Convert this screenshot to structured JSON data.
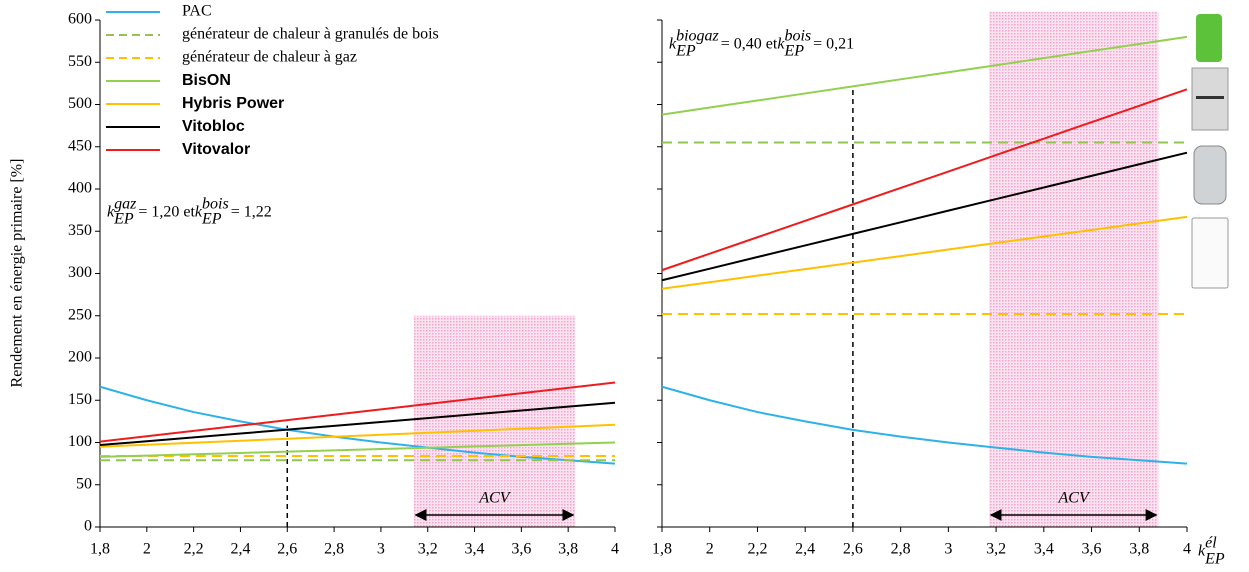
{
  "chart_data": [
    {
      "type": "line",
      "y_label": "Rendement en énergie primaire [%]",
      "x": [
        1.8,
        2.0,
        2.2,
        2.4,
        2.6,
        2.8,
        3.0,
        3.2,
        3.4,
        3.6,
        3.8,
        4.0
      ],
      "xlim": [
        1.8,
        4
      ],
      "xticks": [
        {
          "value": 1.8,
          "label": "1,8"
        },
        2,
        {
          "value": 2.2,
          "label": "2,2"
        },
        {
          "value": 2.4,
          "label": "2,4"
        },
        {
          "value": 2.6,
          "label": "2,6"
        },
        {
          "value": 2.8,
          "label": "2,8"
        },
        3,
        {
          "value": 3.2,
          "label": "3,2"
        },
        {
          "value": 3.4,
          "label": "3,4"
        },
        {
          "value": 3.6,
          "label": "3,6"
        },
        {
          "value": 3.8,
          "label": "3,8"
        },
        4
      ],
      "ylim": [
        0,
        600
      ],
      "yticks": [
        0,
        50,
        100,
        150,
        200,
        250,
        300,
        350,
        400,
        450,
        500,
        550,
        600
      ],
      "legend": "top-left",
      "annotation": [
        {
          "text": "k",
          "sub": "EP",
          "sup": "gaz"
        },
        {
          "text": " = 1,20  et  "
        },
        {
          "text": "k",
          "sub": "EP",
          "sup": "bois"
        },
        {
          "text": " = 1,22"
        }
      ],
      "reference_line": {
        "x": 2.6,
        "top": 120
      },
      "shaded_region": {
        "x": [
          3.14,
          3.83
        ],
        "y": [
          0,
          250
        ],
        "label": "ACV"
      },
      "series": [
        {
          "name": "PAC",
          "color": "#2db2e8",
          "dashed": false,
          "bold": false,
          "values": [
            166,
            150,
            136,
            125,
            115,
            107,
            100,
            94,
            88,
            83,
            79,
            75
          ]
        },
        {
          "name": "générateur de chaleur à granulés de bois",
          "color": "#92c353",
          "dashed": true,
          "bold": false,
          "values": [
            79,
            79,
            79,
            79,
            79,
            79,
            79,
            79,
            79,
            79,
            79,
            79
          ]
        },
        {
          "name": "générateur de chaleur à gaz",
          "color": "#ffc000",
          "dashed": true,
          "bold": false,
          "values": [
            84,
            84,
            84,
            84,
            84,
            84,
            84,
            84,
            84,
            84,
            84,
            84
          ]
        },
        {
          "name": "BisON",
          "color": "#92d050",
          "dashed": false,
          "bold": true,
          "values": [
            83,
            84.5,
            86.1,
            87.6,
            89.2,
            90.7,
            92.3,
            93.8,
            95.4,
            96.9,
            98.5,
            100
          ]
        },
        {
          "name": "Hybris Power",
          "color": "#ffc000",
          "dashed": false,
          "bold": true,
          "values": [
            95,
            97.4,
            99.7,
            102.1,
            104.5,
            106.8,
            109.2,
            111.5,
            113.9,
            116.3,
            118.6,
            121
          ]
        },
        {
          "name": "Vitobloc",
          "color": "#000000",
          "dashed": false,
          "bold": true,
          "values": [
            97,
            101.5,
            106.1,
            110.6,
            115.2,
            119.7,
            124.3,
            128.8,
            133.4,
            137.9,
            142.5,
            147
          ]
        },
        {
          "name": "Vitovalor",
          "color": "#ee1c1c",
          "dashed": false,
          "bold": true,
          "values": [
            101,
            107.4,
            113.7,
            120.1,
            126.5,
            132.8,
            139.2,
            145.5,
            151.9,
            158.3,
            164.6,
            171
          ]
        }
      ]
    },
    {
      "type": "line",
      "x_label": {
        "text": "k",
        "sub": "EP",
        "sup": "él"
      },
      "x": [
        1.8,
        2.0,
        2.2,
        2.4,
        2.6,
        2.8,
        3.0,
        3.2,
        3.4,
        3.6,
        3.8,
        4.0
      ],
      "xlim": [
        1.8,
        4
      ],
      "xticks": [
        {
          "value": 1.8,
          "label": "1,8"
        },
        2,
        {
          "value": 2.2,
          "label": "2,2"
        },
        {
          "value": 2.4,
          "label": "2,4"
        },
        {
          "value": 2.6,
          "label": "2,6"
        },
        {
          "value": 2.8,
          "label": "2,8"
        },
        3,
        {
          "value": 3.2,
          "label": "3,2"
        },
        {
          "value": 3.4,
          "label": "3,4"
        },
        {
          "value": 3.6,
          "label": "3,6"
        },
        {
          "value": 3.8,
          "label": "3,8"
        },
        4
      ],
      "ylim": [
        0,
        600
      ],
      "annotation": [
        {
          "text": "k",
          "sub": "EP",
          "sup": "biogaz"
        },
        {
          "text": " = 0,40  et  "
        },
        {
          "text": "k",
          "sub": "EP",
          "sup": "bois"
        },
        {
          "text": " = 0,21"
        }
      ],
      "reference_line": {
        "x": 2.6,
        "top": 520
      },
      "shaded_region": {
        "x": [
          3.17,
          3.88
        ],
        "y": [
          0,
          610
        ],
        "label": "ACV"
      },
      "series": [
        {
          "color": "#2db2e8",
          "dashed": false,
          "values": [
            166,
            150,
            136,
            125,
            115,
            107,
            100,
            94,
            88,
            83,
            79,
            75
          ]
        },
        {
          "color": "#92c353",
          "dashed": true,
          "values": [
            455,
            455,
            455,
            455,
            455,
            455,
            455,
            455,
            455,
            455,
            455,
            455
          ]
        },
        {
          "color": "#ffc000",
          "dashed": true,
          "values": [
            252,
            252,
            252,
            252,
            252,
            252,
            252,
            252,
            252,
            252,
            252,
            252
          ]
        },
        {
          "color": "#92d050",
          "dashed": false,
          "values": [
            488,
            496.4,
            504.7,
            513.1,
            521.5,
            529.8,
            538.2,
            546.5,
            554.9,
            563.3,
            571.6,
            580
          ]
        },
        {
          "color": "#ffc000",
          "dashed": false,
          "values": [
            282,
            289.7,
            297.5,
            305.2,
            312.9,
            320.6,
            328.4,
            336.1,
            343.8,
            351.5,
            359.3,
            367
          ]
        },
        {
          "color": "#000000",
          "dashed": false,
          "values": [
            292,
            305.7,
            319.5,
            333.2,
            346.9,
            360.6,
            374.4,
            388.1,
            401.8,
            415.5,
            429.3,
            443
          ]
        },
        {
          "color": "#ee1c1c",
          "dashed": false,
          "values": [
            304,
            323.5,
            342.9,
            362.4,
            381.8,
            401.3,
            420.7,
            440.2,
            459.6,
            479.1,
            498.5,
            518
          ]
        }
      ]
    }
  ]
}
